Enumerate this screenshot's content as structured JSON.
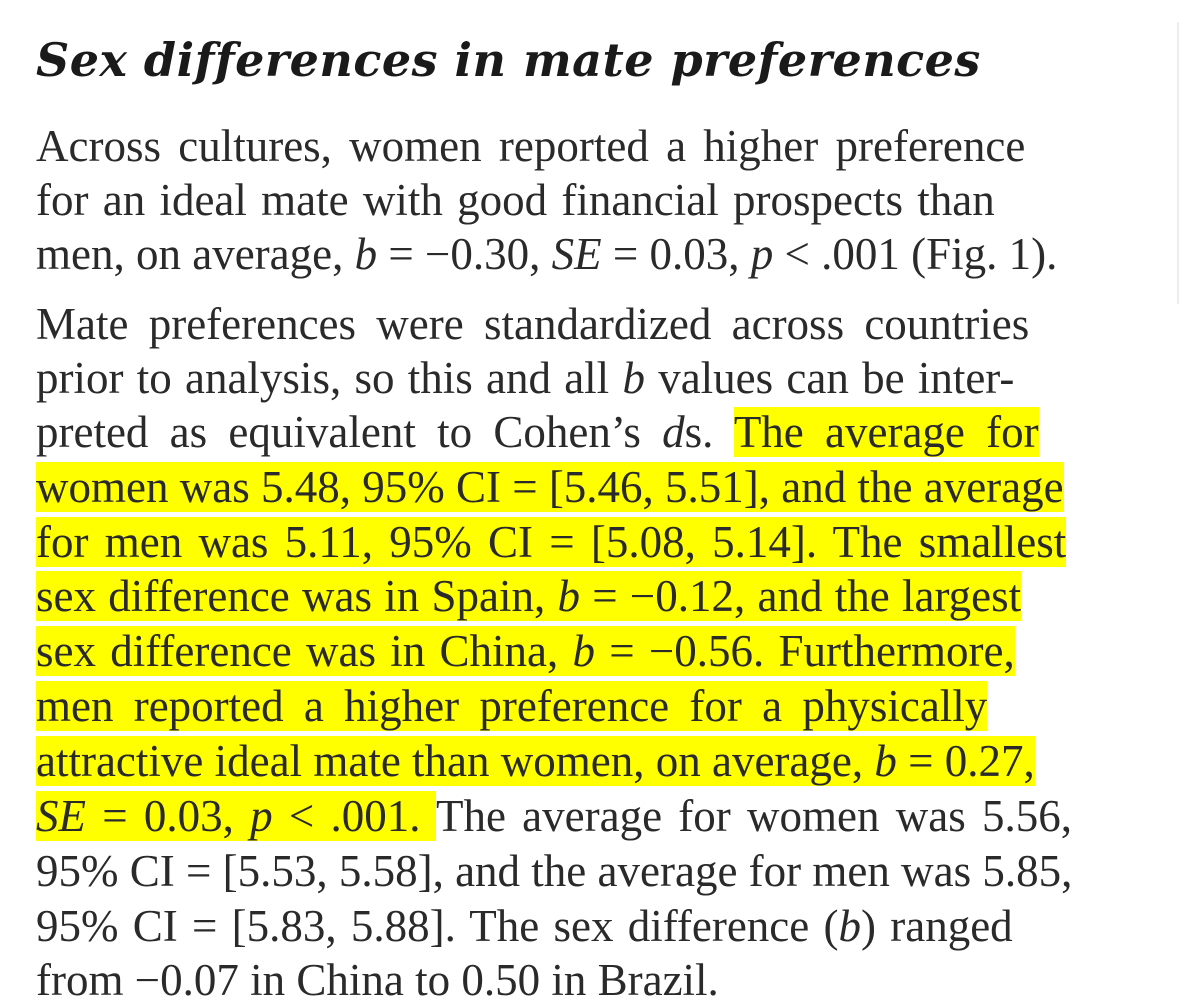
{
  "heading": "Sex differences in mate preferences",
  "colors": {
    "highlight": "#ffff00",
    "text": "#2a2a2a"
  },
  "lines": {
    "l1": "Across cultures, women reported a higher preference",
    "l2": "for an ideal mate with good financial prospects than",
    "l3": {
      "a": "men, on average, ",
      "b": "b",
      "c": " = −0.30, ",
      "d": "SE",
      "e": " = 0.03, ",
      "f": "p",
      "g": " < .001 (Fig. 1)."
    },
    "l4": "Mate preferences were standardized across countries",
    "l5": {
      "a": "prior to analysis, so this and all ",
      "b": "b",
      "c": " values can be inter-"
    },
    "l6": {
      "a": "preted as equivalent to Cohen’s ",
      "b": "d",
      "c": "s. ",
      "d": "The average for"
    },
    "l7": "women was 5.48, 95% CI = [5.46, 5.51], and the average",
    "l8": "for men was 5.11, 95% CI = [5.08, 5.14]. The smallest",
    "l9": {
      "a": "sex difference was in Spain, ",
      "b": "b",
      "c": " = −0.12, and the largest"
    },
    "l10": {
      "a": "sex difference was in China, ",
      "b": "b",
      "c": " = −0.56. Furthermore,"
    },
    "l11": "men reported a higher preference for a physically",
    "l12": {
      "a": "attractive ideal mate than women, on average, ",
      "b": "b",
      "c": " = 0.27,"
    },
    "l13": {
      "a": "SE",
      "b": " = 0.03, ",
      "c": "p",
      "d": " < .001. ",
      "e": "The average for women was 5.56,"
    },
    "l14": "95% CI = [5.53, 5.58], and the average for men was 5.85,",
    "l15": {
      "a": "95% CI = [5.83, 5.88]. The sex difference (",
      "b": "b",
      "c": ") ranged"
    },
    "l16": "from −0.07 in China to 0.50 in Brazil."
  }
}
